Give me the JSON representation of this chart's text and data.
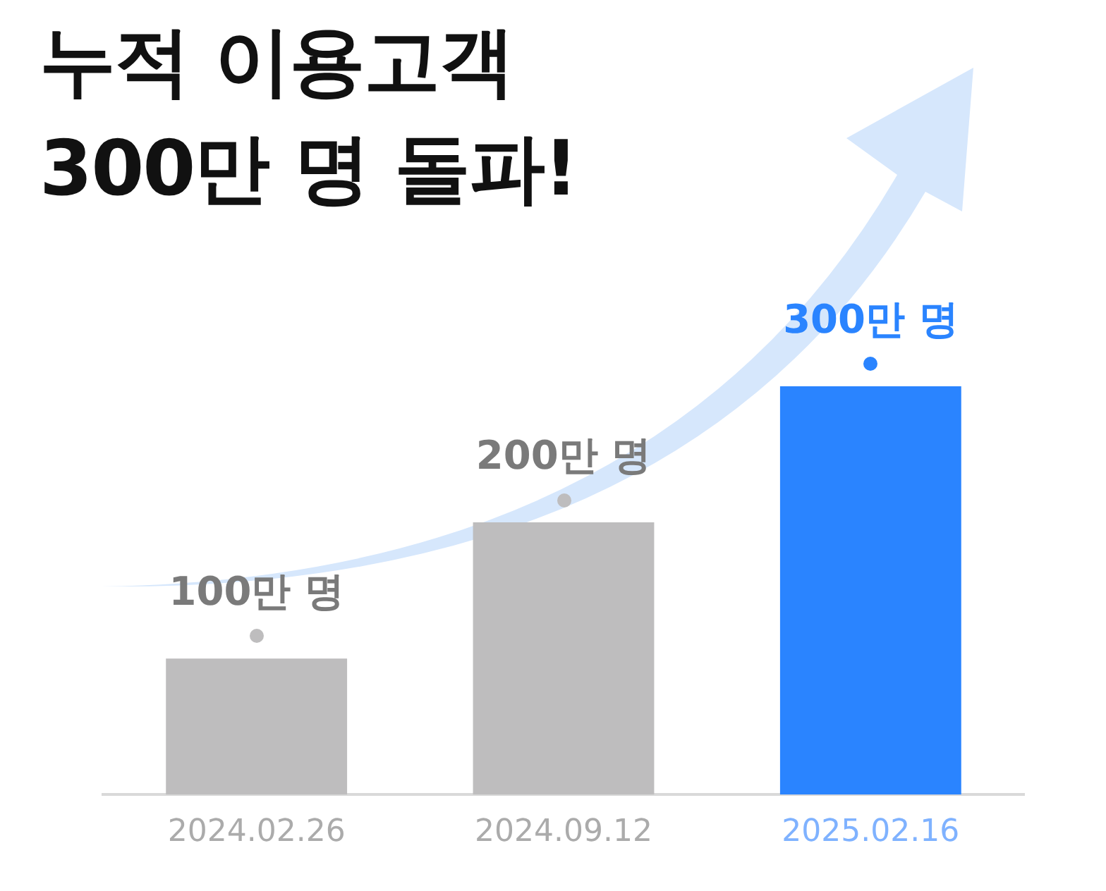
{
  "chart_data": {
    "type": "bar",
    "title": "누적 이용고객\n300만 명 돌파!",
    "categories": [
      "2024.02.26",
      "2024.09.12",
      "2025.02.16"
    ],
    "values": [
      100,
      200,
      300
    ],
    "value_labels": [
      "100만 명",
      "200만 명",
      "300만 명"
    ],
    "colors": [
      "#bebdbe",
      "#bebdbe",
      "#2a84ff"
    ]
  }
}
